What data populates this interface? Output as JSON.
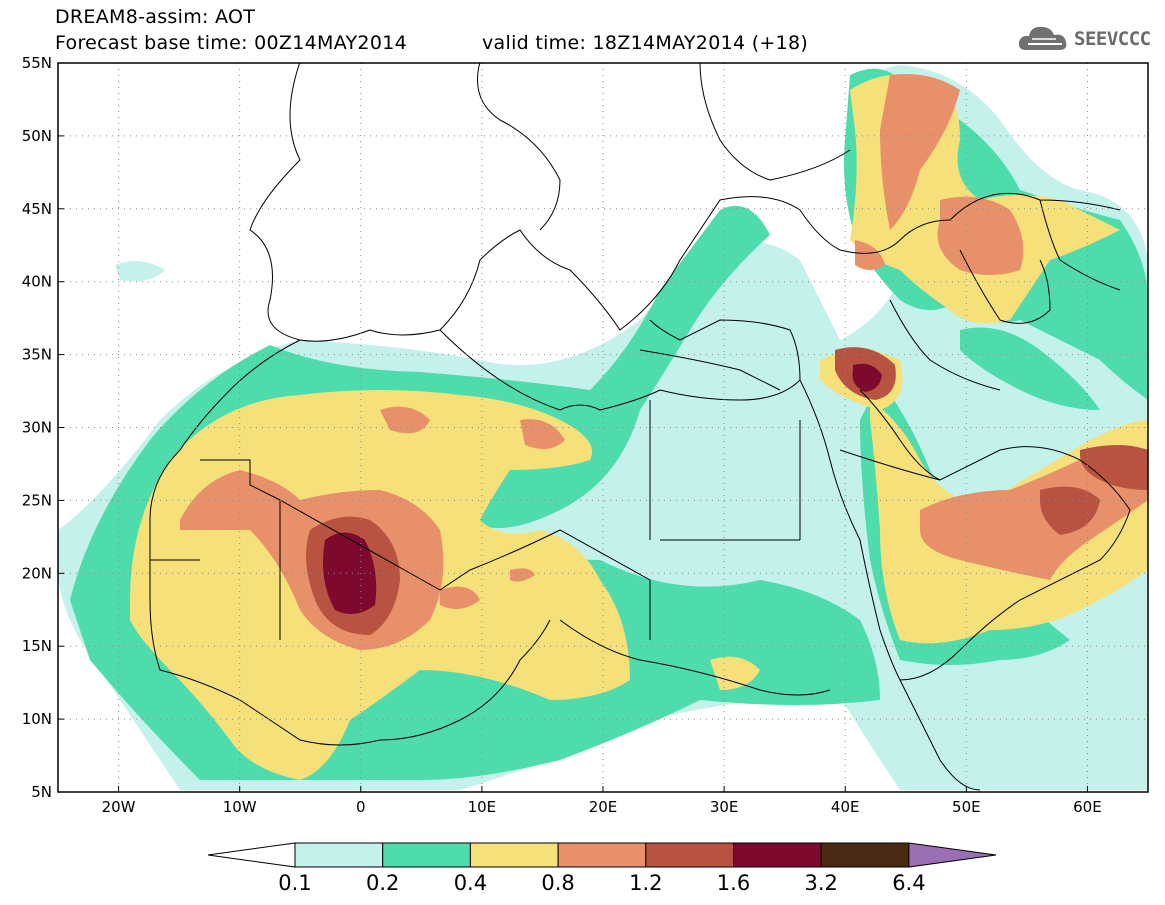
{
  "header": {
    "line1": "DREAM8-assim: AOT",
    "line2_left": "Forecast base time: 00Z14MAY2014",
    "line2_right": "valid time: 18Z14MAY2014 (+18)",
    "logo_text": "SEEVCCC"
  },
  "map": {
    "projection": "lat-lon",
    "lon_range": [
      -25,
      65
    ],
    "lat_range": [
      5,
      55
    ],
    "lat_labels": [
      "5N",
      "10N",
      "15N",
      "20N",
      "25N",
      "30N",
      "35N",
      "40N",
      "45N",
      "50N",
      "55N"
    ],
    "lon_labels": [
      "20W",
      "10W",
      "0",
      "10E",
      "20E",
      "30E",
      "40E",
      "50E",
      "60E"
    ],
    "grid": "dotted"
  },
  "legend": {
    "labels": [
      "0.1",
      "0.2",
      "0.4",
      "0.8",
      "1.2",
      "1.6",
      "3.2",
      "6.4"
    ],
    "colors": [
      "#ffffff",
      "#c4f2eb",
      "#4fdcad",
      "#f5e07a",
      "#e8906a",
      "#b75340",
      "#7d0a2e",
      "#4a2a15",
      "#9a6fb4"
    ]
  }
}
